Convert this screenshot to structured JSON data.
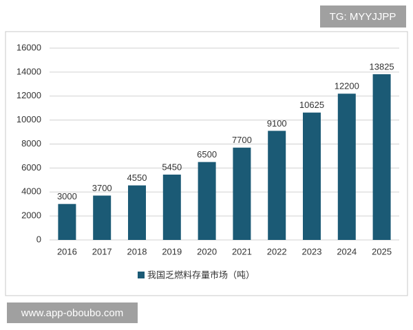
{
  "chart_data": {
    "type": "bar",
    "categories": [
      "2016",
      "2017",
      "2018",
      "2019",
      "2020",
      "2021",
      "2022",
      "2023",
      "2024",
      "2025"
    ],
    "series": [
      {
        "name": "我国乏燃料存量市场（吨）",
        "color": "#1b5a75",
        "values": [
          3000,
          3700,
          4550,
          5450,
          6500,
          7700,
          9100,
          10625,
          12200,
          13825
        ]
      }
    ],
    "ylim": [
      0,
      16000
    ],
    "yticks": [
      0,
      2000,
      4000,
      6000,
      8000,
      10000,
      12000,
      14000,
      16000
    ],
    "grid": true,
    "legend": "bottom",
    "annotations": [
      "TG: MYYJJPP",
      "www.app-oboubo.com"
    ]
  }
}
